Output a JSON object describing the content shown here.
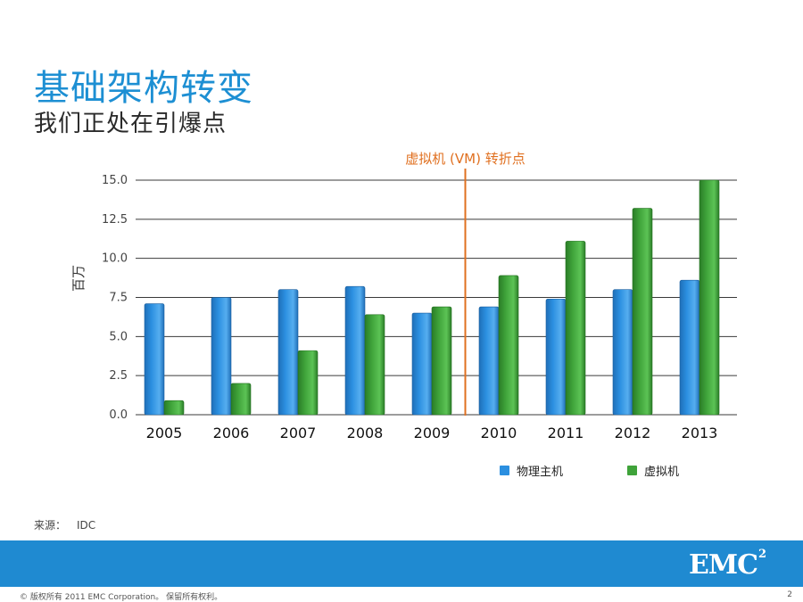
{
  "slide": {
    "title": "基础架构转变",
    "subtitle": "我们正处在引爆点",
    "source_label": "来源：",
    "source_value": "IDC",
    "logo_text": "EMC",
    "logo_superscript": "2",
    "footer": "© 版权所有 2011 EMC Corporation。 保留所有权利。",
    "page_number": "2"
  },
  "colors": {
    "title": "#1d8fd3",
    "band": "#1f8ad1",
    "physical": "#2b8fe0",
    "virtual": "#3fa33a",
    "marker": "#e07020"
  },
  "chart_data": {
    "type": "bar",
    "categories": [
      "2005",
      "2006",
      "2007",
      "2008",
      "2009",
      "2010",
      "2011",
      "2012",
      "2013"
    ],
    "series": [
      {
        "name": "物理主机",
        "values": [
          7.1,
          7.5,
          8.0,
          8.2,
          6.5,
          6.9,
          7.4,
          8.0,
          8.6
        ]
      },
      {
        "name": "虚拟机",
        "values": [
          0.9,
          2.0,
          4.1,
          6.4,
          6.9,
          8.9,
          11.1,
          13.2,
          15.0
        ]
      }
    ],
    "ylabel": "百万",
    "xlabel": "",
    "ylim": [
      0,
      15
    ],
    "yticks": [
      "0.0",
      "2.5",
      "5.0",
      "7.5",
      "10.0",
      "12.5",
      "15.0"
    ],
    "grid": true,
    "annotation": {
      "text": "虚拟机 (VM) 转折点",
      "after_category": "2009"
    },
    "legend_position": "bottom"
  }
}
